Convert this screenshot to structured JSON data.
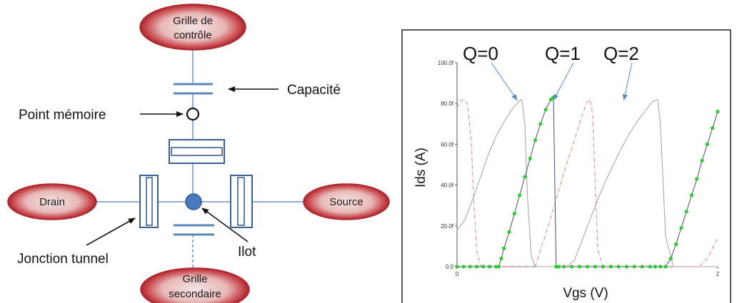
{
  "diagram": {
    "control_gate": [
      "Grille de",
      "contrôle"
    ],
    "drain": "Drain",
    "source": "Source",
    "secondary_gate": [
      "Grille",
      "secondaire"
    ],
    "capacitor_label": "Capacité",
    "memory_point_label": "Point mémoire",
    "tunnel_junction_label": "Jonction tunnel",
    "island_label": "Ilot",
    "colors": {
      "ellipse_fill": "#c0282e",
      "ellipse_inner": "#f3d9d9",
      "line_blue": "#6f94c4",
      "box_stroke": "#3a5f93",
      "island_fill": "#4b79bd"
    }
  },
  "chart_data": {
    "type": "line",
    "xlabel": "Vgs (V)",
    "ylabel": "Ids (A)",
    "xlim": [
      0,
      2
    ],
    "ylim": [
      0,
      100
    ],
    "x_ticks": [
      "0",
      "2"
    ],
    "y_ticks": [
      "0.0",
      "20.0f",
      "40.0f",
      "60.0f",
      "80.0f",
      "100.0f"
    ],
    "annotations": [
      {
        "text": "Q=0",
        "x": 0.46,
        "y": 81
      },
      {
        "text": "Q=1",
        "x": 0.74,
        "y": 81
      },
      {
        "text": "Q=2",
        "x": 1.28,
        "y": 81
      }
    ],
    "series": [
      {
        "style": "gray-solid",
        "color": "#a8a8a8",
        "x": [
          0,
          0.06,
          0.12,
          0.18,
          0.24,
          0.3,
          0.36,
          0.42,
          0.46,
          0.49,
          0.5,
          0.52,
          0.54,
          0.57,
          0.6,
          0.66,
          0.72,
          0.78,
          0.84,
          0.9,
          0.96,
          1.02,
          1.08,
          1.14,
          1.2,
          1.26,
          1.32,
          1.38,
          1.44,
          1.5,
          1.54,
          1.56,
          1.6,
          1.66,
          1.72,
          1.78,
          1.84,
          1.9,
          1.96,
          2.0
        ],
        "y": [
          18,
          23,
          33,
          44,
          55,
          64,
          71,
          77,
          80,
          82,
          81,
          70,
          35,
          5,
          0,
          0,
          0,
          0,
          0,
          3,
          13,
          23,
          33,
          42,
          50,
          58,
          65,
          71,
          76,
          81,
          82,
          70,
          15,
          0,
          0,
          0,
          0,
          0,
          0,
          0
        ]
      },
      {
        "style": "pink-dashdot",
        "color": "#d28a8a",
        "x": [
          0,
          0.02,
          0.05,
          0.08,
          0.11,
          0.13,
          0.15,
          0.18,
          0.22,
          0.6,
          0.64,
          0.7,
          0.76,
          0.82,
          0.88,
          0.94,
          0.99,
          1.02,
          1.04,
          1.06,
          1.08,
          1.12,
          1.8,
          1.86,
          1.92,
          2.0
        ],
        "y": [
          78,
          81,
          82,
          80,
          60,
          30,
          8,
          0,
          0,
          0,
          8,
          20,
          33,
          46,
          58,
          70,
          80,
          82,
          75,
          40,
          8,
          0,
          0,
          0,
          4,
          14
        ]
      },
      {
        "style": "green-dotted",
        "color": "#2ecc2e",
        "x": [
          0,
          0.05,
          0.1,
          0.15,
          0.2,
          0.25,
          0.3,
          0.32,
          0.34,
          0.36,
          0.4,
          0.44,
          0.48,
          0.52,
          0.56,
          0.6,
          0.64,
          0.68,
          0.72,
          0.74,
          0.76,
          0.78,
          0.82,
          0.88,
          0.94,
          1.0,
          1.06,
          1.12,
          1.18,
          1.24,
          1.3,
          1.36,
          1.42,
          1.48,
          1.52,
          1.56,
          1.6,
          1.64,
          1.68,
          1.72,
          1.76,
          1.8,
          1.84,
          1.88,
          1.92,
          1.96,
          2.0
        ],
        "y": [
          0,
          0,
          0,
          0,
          0,
          0,
          0,
          0,
          4,
          9,
          17,
          26,
          35,
          44,
          53,
          62,
          70,
          77,
          82,
          83,
          0,
          0,
          0,
          0,
          0,
          0,
          0,
          0,
          0,
          0,
          0,
          0,
          0,
          0,
          0,
          0,
          0,
          4,
          11,
          19,
          27,
          35,
          43,
          52,
          60,
          68,
          76
        ]
      }
    ]
  }
}
